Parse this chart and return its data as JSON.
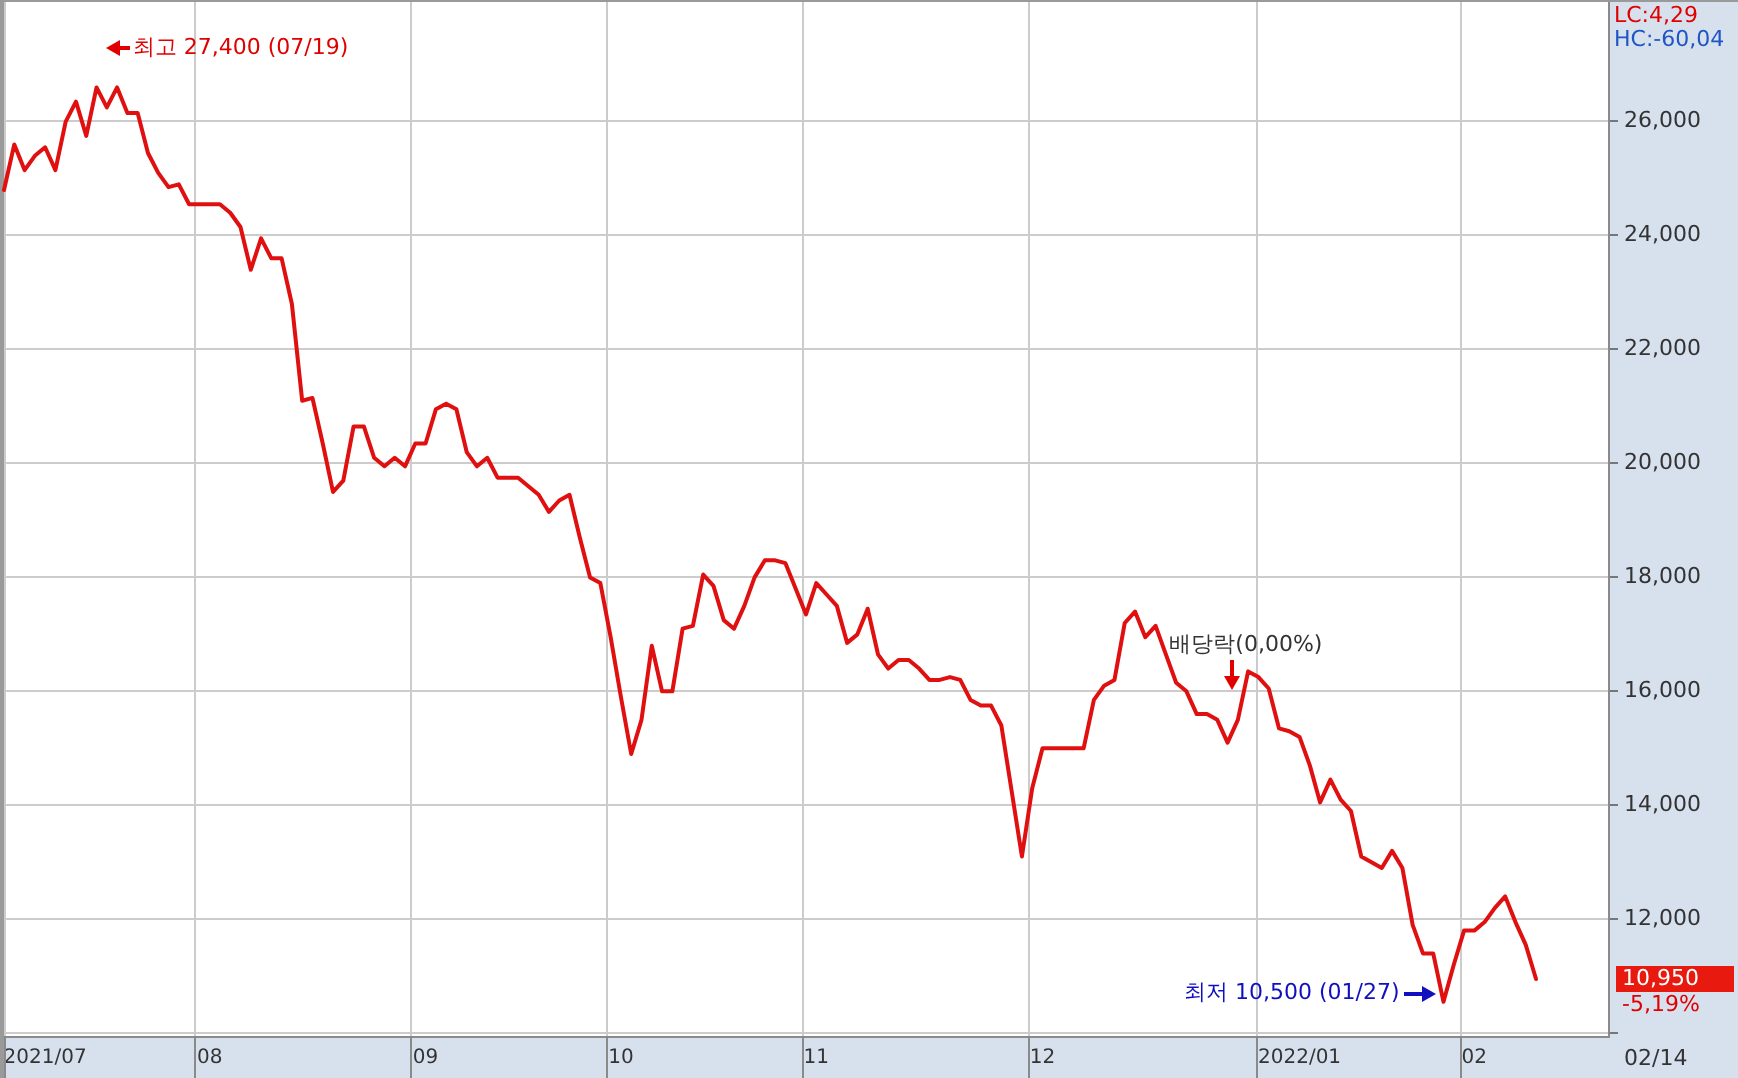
{
  "chart_data": {
    "type": "line",
    "categories": [
      null,
      null,
      null,
      null,
      "2021/07",
      null,
      null,
      null,
      null,
      null,
      null,
      null,
      null,
      null,
      null,
      null,
      null,
      null,
      null,
      null,
      "08",
      null,
      null,
      null,
      null,
      null,
      null,
      null,
      null,
      null,
      null,
      null,
      null,
      null,
      null,
      null,
      null,
      null,
      null,
      null,
      null,
      "09",
      null,
      null,
      null,
      null,
      null,
      null,
      null,
      null,
      null,
      null,
      null,
      null,
      null,
      null,
      null,
      null,
      null,
      null,
      "10",
      null,
      null,
      null,
      null,
      null,
      null,
      null,
      null,
      null,
      null,
      null,
      null,
      null,
      null,
      null,
      null,
      null,
      null,
      "11",
      null,
      null,
      null,
      null,
      null,
      null,
      null,
      null,
      null,
      null,
      null,
      null,
      null,
      null,
      null,
      null,
      null,
      null,
      null,
      null,
      null,
      "12",
      null,
      null,
      null,
      null,
      null,
      null,
      null,
      null,
      null,
      null,
      null,
      null,
      null,
      null,
      null,
      null,
      null,
      null,
      null,
      null,
      null,
      null,
      null,
      null,
      "2022/01",
      null,
      null,
      null,
      null,
      null,
      null,
      null,
      null,
      null,
      null,
      null,
      null,
      null,
      null,
      null,
      null,
      "02",
      null,
      null,
      null,
      null,
      null,
      null,
      null,
      null,
      null,
      null,
      null,
      null,
      null
    ],
    "values": [
      24800,
      25600,
      25150,
      25400,
      25550,
      25150,
      26000,
      26350,
      25750,
      26600,
      26250,
      26600,
      26150,
      26150,
      25450,
      25100,
      24850,
      24900,
      24550,
      24550,
      24550,
      24550,
      24400,
      24150,
      23400,
      23950,
      23600,
      23600,
      22800,
      21100,
      21150,
      20350,
      19500,
      19700,
      20650,
      20650,
      20100,
      19950,
      20100,
      19950,
      20350,
      20350,
      20950,
      21050,
      20950,
      20200,
      19950,
      20100,
      19750,
      19750,
      19750,
      19600,
      19450,
      19150,
      19350,
      19450,
      18700,
      18000,
      17900,
      16950,
      15900,
      14900,
      15500,
      16800,
      16000,
      16000,
      17100,
      17150,
      18050,
      17850,
      17250,
      17100,
      17500,
      18000,
      18300,
      18300,
      18250,
      17800,
      17350,
      17900,
      17700,
      17500,
      16850,
      17000,
      17450,
      16650,
      16400,
      16550,
      16550,
      16400,
      16200,
      16200,
      16250,
      16200,
      15850,
      15750,
      15750,
      15400,
      14250,
      13100,
      14300,
      15000,
      15000,
      15000,
      15000,
      15000,
      15850,
      16100,
      16200,
      17200,
      17400,
      16950,
      17150,
      16650,
      16150,
      16000,
      15600,
      15600,
      15500,
      15100,
      15500,
      16350,
      16250,
      16050,
      15350,
      15300,
      15200,
      14700,
      14050,
      14450,
      14100,
      13900,
      13100,
      13000,
      12900,
      13200,
      12900,
      11900,
      11400,
      11400,
      10550,
      11200,
      11800,
      11800,
      11950,
      12200,
      12400,
      11950,
      11550,
      10950,
      null,
      null,
      null,
      null,
      null,
      null,
      null
    ],
    "color": "#e01010",
    "ylim": [
      9950,
      28100
    ],
    "yticks": [
      {
        "value": 10000,
        "label": null
      },
      {
        "value": 12000,
        "label": "12,000"
      },
      {
        "value": 14000,
        "label": "14,000"
      },
      {
        "value": 16000,
        "label": "16,000"
      },
      {
        "value": 18000,
        "label": "18,000"
      },
      {
        "value": 20000,
        "label": "20,000"
      },
      {
        "value": 22000,
        "label": "22,000"
      },
      {
        "value": 24000,
        "label": "24,000"
      },
      {
        "value": 26000,
        "label": "26,000"
      }
    ],
    "grid": true,
    "annotations": [
      "최고 27,400 (07/19)",
      "배당락(0,00%)",
      "최저 10,500 (01/27)",
      "LC:4,29",
      "HC:-60,04",
      "10,950",
      "-5,19%",
      "02/14"
    ]
  }
}
